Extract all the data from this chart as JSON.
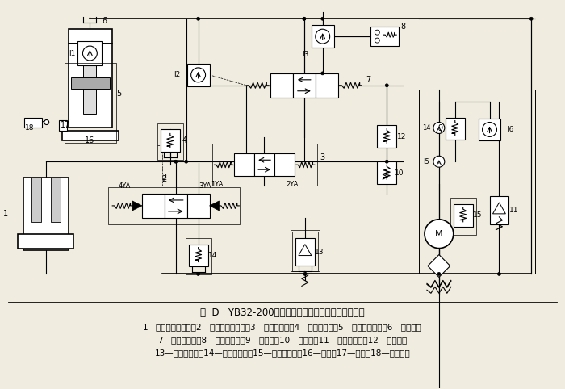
{
  "title_line": "图  D   YB32-200型四柱万能液压机的液压系统原理图",
  "caption_line1": "1—下缸（顶出缸）；2—下缸电液换向阀；3—主缸先导阀；4—主缸安全阀；5—上缸（主缸）；6—充液箱；",
  "caption_line2": "7—主缸换向阀；8—压力继电器；9—释压阀；10—顺序阀；11—泵站溢流阀；12—减压阀；",
  "caption_line3": "13—下缸溢流阀；14—下缸安全阀；15—远程调压阀；16—滑块；17—挡块；18—行程开关",
  "bg_color": "#f0ece0",
  "fig_width": 7.0,
  "fig_height": 4.82,
  "dpi": 100
}
